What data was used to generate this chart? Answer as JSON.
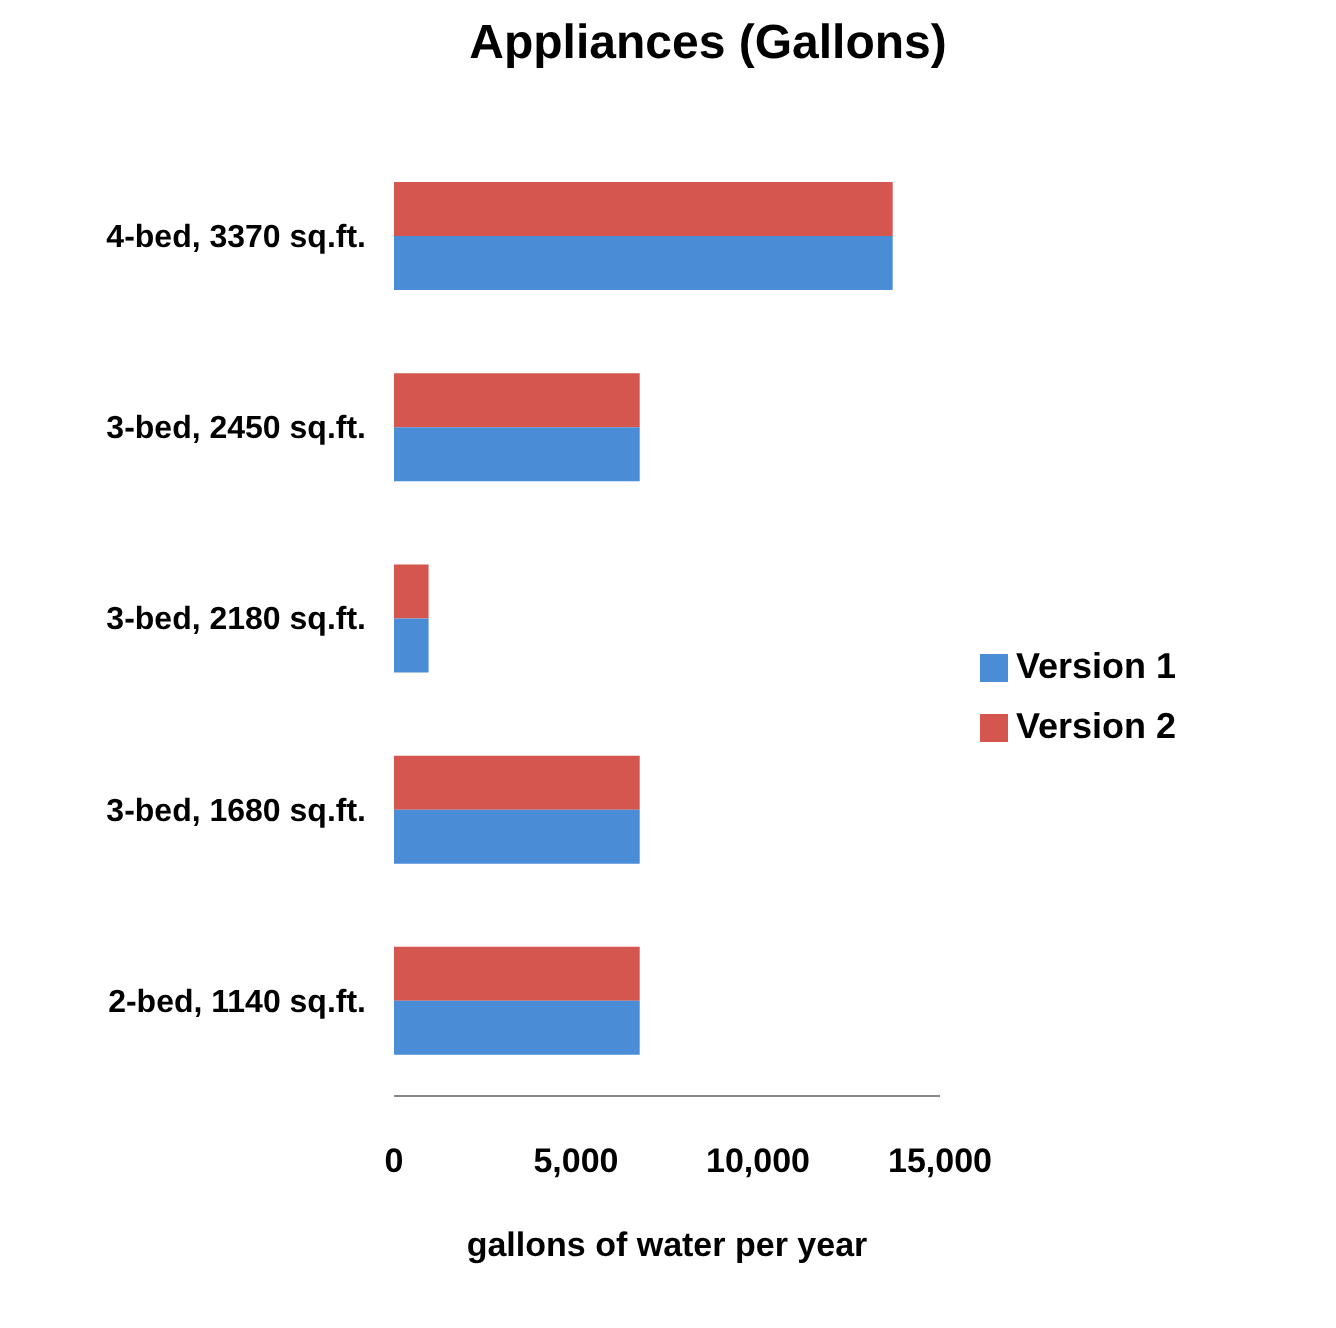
{
  "chart_data": {
    "type": "bar",
    "orientation": "horizontal",
    "title": "Appliances (Gallons)",
    "xlabel": "gallons of water per year",
    "categories": [
      "4-bed, 3370 sq.ft.",
      "3-bed, 2450 sq.ft.",
      "3-bed, 2180 sq.ft.",
      "3-bed, 1680 sq.ft.",
      "2-bed, 1140 sq.ft."
    ],
    "series": [
      {
        "name": "Version 2",
        "color": "#d5554f",
        "values": [
          13700,
          6750,
          950,
          6750,
          6750
        ]
      },
      {
        "name": "Version 1",
        "color": "#4a8cd6",
        "values": [
          13700,
          6750,
          950,
          6750,
          6750
        ]
      }
    ],
    "xlim": [
      0,
      15000
    ],
    "xticks": [
      {
        "value": 0,
        "label": "0"
      },
      {
        "value": 5000,
        "label": "5,000"
      },
      {
        "value": 10000,
        "label": "10,000"
      },
      {
        "value": 15000,
        "label": "15,000"
      }
    ],
    "grid": false,
    "legend": "right"
  }
}
